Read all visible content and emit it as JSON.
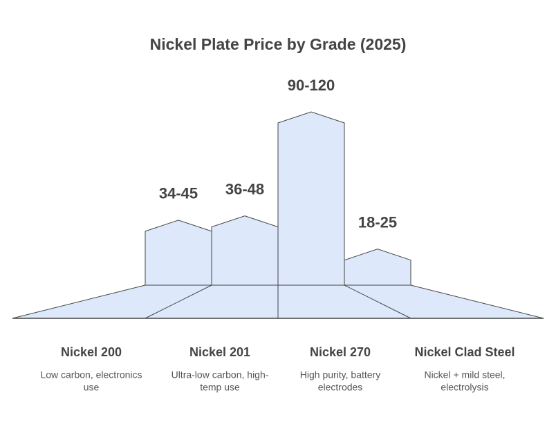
{
  "chart_data": {
    "type": "range-house",
    "title": "Nickel Plate Price by Grade (2025)",
    "categories": [
      "Nickel 200",
      "Nickel 201",
      "Nickel 270",
      "Nickel Clad Steel"
    ],
    "descriptions": [
      [
        "Low carbon, electronics",
        "use"
      ],
      [
        "Ultra-low carbon, high-",
        "temp use"
      ],
      [
        "High purity, battery",
        "electrodes"
      ],
      [
        "Nickel + mild steel,",
        "electrolysis"
      ]
    ],
    "low": [
      34,
      36,
      90,
      18
    ],
    "high": [
      45,
      48,
      120,
      25
    ],
    "value_labels": [
      "34-45",
      "36-48",
      "90-120",
      "18-25"
    ],
    "color": "#dde8fb"
  }
}
